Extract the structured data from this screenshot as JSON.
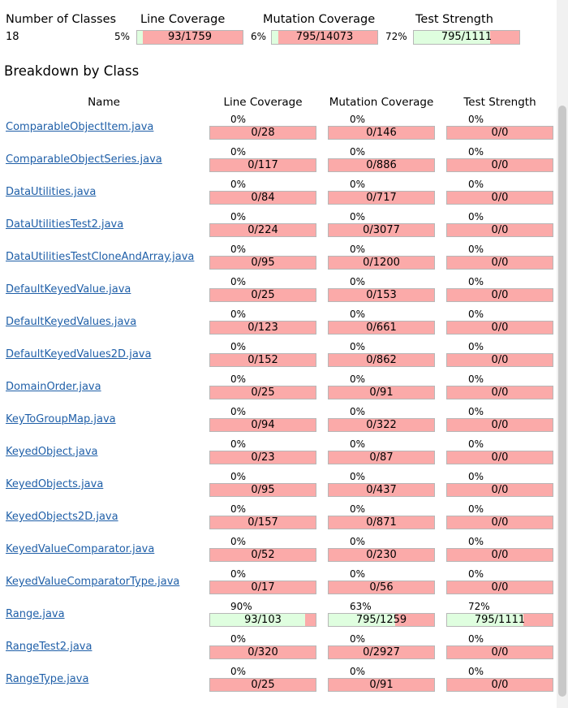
{
  "summary": {
    "headers": {
      "classes": "Number of Classes",
      "line": "Line Coverage",
      "mutation": "Mutation Coverage",
      "strength": "Test Strength"
    },
    "class_count": "18",
    "line": {
      "pct": "5%",
      "ratio": "93/1759",
      "fill": 0.05
    },
    "mutation": {
      "pct": "6%",
      "ratio": "795/14073",
      "fill": 0.06
    },
    "strength": {
      "pct": "72%",
      "ratio": "795/1111",
      "fill": 0.72
    }
  },
  "breakdown": {
    "title": "Breakdown by Class",
    "headers": {
      "name": "Name",
      "line": "Line Coverage",
      "mutation": "Mutation Coverage",
      "strength": "Test Strength"
    },
    "rows": [
      {
        "name": "ComparableObjectItem.java",
        "line": {
          "pct": "0%",
          "ratio": "0/28",
          "fill": 0
        },
        "mutation": {
          "pct": "0%",
          "ratio": "0/146",
          "fill": 0
        },
        "strength": {
          "pct": "0%",
          "ratio": "0/0",
          "fill": 0
        }
      },
      {
        "name": "ComparableObjectSeries.java",
        "line": {
          "pct": "0%",
          "ratio": "0/117",
          "fill": 0
        },
        "mutation": {
          "pct": "0%",
          "ratio": "0/886",
          "fill": 0
        },
        "strength": {
          "pct": "0%",
          "ratio": "0/0",
          "fill": 0
        }
      },
      {
        "name": "DataUtilities.java",
        "line": {
          "pct": "0%",
          "ratio": "0/84",
          "fill": 0
        },
        "mutation": {
          "pct": "0%",
          "ratio": "0/717",
          "fill": 0
        },
        "strength": {
          "pct": "0%",
          "ratio": "0/0",
          "fill": 0
        }
      },
      {
        "name": "DataUtilitiesTest2.java",
        "line": {
          "pct": "0%",
          "ratio": "0/224",
          "fill": 0
        },
        "mutation": {
          "pct": "0%",
          "ratio": "0/3077",
          "fill": 0
        },
        "strength": {
          "pct": "0%",
          "ratio": "0/0",
          "fill": 0
        }
      },
      {
        "name": "DataUtilitiesTestCloneAndArray.java",
        "line": {
          "pct": "0%",
          "ratio": "0/95",
          "fill": 0
        },
        "mutation": {
          "pct": "0%",
          "ratio": "0/1200",
          "fill": 0
        },
        "strength": {
          "pct": "0%",
          "ratio": "0/0",
          "fill": 0
        }
      },
      {
        "name": "DefaultKeyedValue.java",
        "line": {
          "pct": "0%",
          "ratio": "0/25",
          "fill": 0
        },
        "mutation": {
          "pct": "0%",
          "ratio": "0/153",
          "fill": 0
        },
        "strength": {
          "pct": "0%",
          "ratio": "0/0",
          "fill": 0
        }
      },
      {
        "name": "DefaultKeyedValues.java",
        "line": {
          "pct": "0%",
          "ratio": "0/123",
          "fill": 0
        },
        "mutation": {
          "pct": "0%",
          "ratio": "0/661",
          "fill": 0
        },
        "strength": {
          "pct": "0%",
          "ratio": "0/0",
          "fill": 0
        }
      },
      {
        "name": "DefaultKeyedValues2D.java",
        "line": {
          "pct": "0%",
          "ratio": "0/152",
          "fill": 0
        },
        "mutation": {
          "pct": "0%",
          "ratio": "0/862",
          "fill": 0
        },
        "strength": {
          "pct": "0%",
          "ratio": "0/0",
          "fill": 0
        }
      },
      {
        "name": "DomainOrder.java",
        "line": {
          "pct": "0%",
          "ratio": "0/25",
          "fill": 0
        },
        "mutation": {
          "pct": "0%",
          "ratio": "0/91",
          "fill": 0
        },
        "strength": {
          "pct": "0%",
          "ratio": "0/0",
          "fill": 0
        }
      },
      {
        "name": "KeyToGroupMap.java",
        "line": {
          "pct": "0%",
          "ratio": "0/94",
          "fill": 0
        },
        "mutation": {
          "pct": "0%",
          "ratio": "0/322",
          "fill": 0
        },
        "strength": {
          "pct": "0%",
          "ratio": "0/0",
          "fill": 0
        }
      },
      {
        "name": "KeyedObject.java",
        "line": {
          "pct": "0%",
          "ratio": "0/23",
          "fill": 0
        },
        "mutation": {
          "pct": "0%",
          "ratio": "0/87",
          "fill": 0
        },
        "strength": {
          "pct": "0%",
          "ratio": "0/0",
          "fill": 0
        }
      },
      {
        "name": "KeyedObjects.java",
        "line": {
          "pct": "0%",
          "ratio": "0/95",
          "fill": 0
        },
        "mutation": {
          "pct": "0%",
          "ratio": "0/437",
          "fill": 0
        },
        "strength": {
          "pct": "0%",
          "ratio": "0/0",
          "fill": 0
        }
      },
      {
        "name": "KeyedObjects2D.java",
        "line": {
          "pct": "0%",
          "ratio": "0/157",
          "fill": 0
        },
        "mutation": {
          "pct": "0%",
          "ratio": "0/871",
          "fill": 0
        },
        "strength": {
          "pct": "0%",
          "ratio": "0/0",
          "fill": 0
        }
      },
      {
        "name": "KeyedValueComparator.java",
        "line": {
          "pct": "0%",
          "ratio": "0/52",
          "fill": 0
        },
        "mutation": {
          "pct": "0%",
          "ratio": "0/230",
          "fill": 0
        },
        "strength": {
          "pct": "0%",
          "ratio": "0/0",
          "fill": 0
        }
      },
      {
        "name": "KeyedValueComparatorType.java",
        "line": {
          "pct": "0%",
          "ratio": "0/17",
          "fill": 0
        },
        "mutation": {
          "pct": "0%",
          "ratio": "0/56",
          "fill": 0
        },
        "strength": {
          "pct": "0%",
          "ratio": "0/0",
          "fill": 0
        }
      },
      {
        "name": "Range.java",
        "line": {
          "pct": "90%",
          "ratio": "93/103",
          "fill": 0.9
        },
        "mutation": {
          "pct": "63%",
          "ratio": "795/1259",
          "fill": 0.63
        },
        "strength": {
          "pct": "72%",
          "ratio": "795/1111",
          "fill": 0.72
        }
      },
      {
        "name": "RangeTest2.java",
        "line": {
          "pct": "0%",
          "ratio": "0/320",
          "fill": 0
        },
        "mutation": {
          "pct": "0%",
          "ratio": "0/2927",
          "fill": 0
        },
        "strength": {
          "pct": "0%",
          "ratio": "0/0",
          "fill": 0
        }
      },
      {
        "name": "RangeType.java",
        "line": {
          "pct": "0%",
          "ratio": "0/25",
          "fill": 0
        },
        "mutation": {
          "pct": "0%",
          "ratio": "0/91",
          "fill": 0
        },
        "strength": {
          "pct": "0%",
          "ratio": "0/0",
          "fill": 0
        }
      }
    ]
  },
  "colors": {
    "covered": "#dffedf",
    "uncovered": "#fbaaa9",
    "link": "#1f5fa8"
  }
}
